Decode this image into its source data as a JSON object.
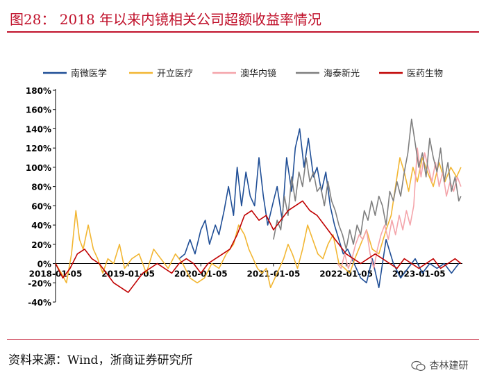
{
  "header": {
    "title": "图28： 2018 年以来内镜相关公司超额收益率情况"
  },
  "footer": {
    "source": "资料来源：Wind，浙商证券研究所",
    "watermark": "杏林建研"
  },
  "colors": {
    "accent": "#c0102a",
    "axis": "#000000"
  },
  "chart_data": {
    "type": "line",
    "title": "2018 年以来内镜相关公司超额收益率情况",
    "xlabel": "",
    "ylabel": "",
    "ylim": [
      -40,
      180
    ],
    "yticks": [
      "180%",
      "160%",
      "140%",
      "120%",
      "100%",
      "80%",
      "60%",
      "40%",
      "20%",
      "0%",
      "-20%",
      "-40%"
    ],
    "ytick_values": [
      180,
      160,
      140,
      120,
      100,
      80,
      60,
      40,
      20,
      0,
      -20,
      -40
    ],
    "xlim": [
      2018.0,
      2023.6
    ],
    "xticks": [
      "2018-01-05",
      "2019-01-05",
      "2020-01-05",
      "2021-01-05",
      "2022-01-05",
      "2023-01-05"
    ],
    "xtick_values": [
      2018.0,
      2019.0,
      2020.0,
      2021.0,
      2022.0,
      2023.0
    ],
    "legend_position": "top",
    "series": [
      {
        "name": "南微医学",
        "color": "#1f4e96",
        "x": [
          2019.7,
          2019.78,
          2019.85,
          2019.92,
          2020.0,
          2020.06,
          2020.12,
          2020.2,
          2020.25,
          2020.32,
          2020.38,
          2020.45,
          2020.5,
          2020.56,
          2020.62,
          2020.68,
          2020.74,
          2020.8,
          2020.86,
          2020.92,
          2021.0,
          2021.05,
          2021.12,
          2021.18,
          2021.25,
          2021.3,
          2021.36,
          2021.42,
          2021.48,
          2021.55,
          2021.6,
          2021.66,
          2021.72,
          2021.78,
          2021.84,
          2021.9,
          2021.96,
          2022.02,
          2022.08,
          2022.14,
          2022.2,
          2022.28,
          2022.36,
          2022.45,
          2022.55,
          2022.65,
          2022.75,
          2022.85,
          2022.95,
          2023.05,
          2023.15,
          2023.25,
          2023.35,
          2023.45,
          2023.55
        ],
        "y": [
          5,
          10,
          25,
          10,
          35,
          45,
          20,
          40,
          30,
          55,
          80,
          50,
          100,
          60,
          95,
          70,
          60,
          110,
          70,
          40,
          65,
          80,
          45,
          110,
          75,
          120,
          140,
          100,
          130,
          90,
          100,
          75,
          95,
          60,
          40,
          25,
          10,
          15,
          5,
          -5,
          -15,
          -20,
          5,
          -25,
          25,
          0,
          -15,
          -5,
          5,
          -10,
          0,
          -5,
          0,
          -10,
          0
        ]
      },
      {
        "name": "开立医疗",
        "color": "#f2b632",
        "x": [
          2018.0,
          2018.08,
          2018.15,
          2018.22,
          2018.28,
          2018.33,
          2018.38,
          2018.45,
          2018.52,
          2018.58,
          2018.65,
          2018.72,
          2018.8,
          2018.88,
          2018.95,
          2019.05,
          2019.15,
          2019.25,
          2019.35,
          2019.45,
          2019.55,
          2019.65,
          2019.75,
          2019.85,
          2019.95,
          2020.05,
          2020.15,
          2020.25,
          2020.35,
          2020.45,
          2020.52,
          2020.6,
          2020.66,
          2020.72,
          2020.78,
          2020.84,
          2020.9,
          2020.96,
          2021.02,
          2021.08,
          2021.14,
          2021.2,
          2021.26,
          2021.33,
          2021.4,
          2021.47,
          2021.54,
          2021.61,
          2021.68,
          2021.75,
          2021.82,
          2021.9,
          2021.98,
          2022.05,
          2022.12,
          2022.2,
          2022.28,
          2022.36,
          2022.45,
          2022.55,
          2022.62,
          2022.68,
          2022.74,
          2022.8,
          2022.86,
          2022.92,
          2022.98,
          2023.05,
          2023.12,
          2023.2,
          2023.28,
          2023.36,
          2023.44,
          2023.52,
          2023.58
        ],
        "y": [
          0,
          -10,
          -20,
          10,
          55,
          25,
          15,
          40,
          15,
          5,
          -10,
          5,
          0,
          20,
          -5,
          5,
          10,
          -10,
          15,
          5,
          -5,
          10,
          0,
          -15,
          -20,
          -15,
          0,
          -5,
          10,
          20,
          40,
          30,
          15,
          5,
          -5,
          -10,
          -5,
          -25,
          -15,
          -5,
          5,
          20,
          10,
          -5,
          15,
          40,
          25,
          10,
          5,
          20,
          30,
          0,
          -5,
          -10,
          5,
          20,
          35,
          15,
          10,
          35,
          50,
          80,
          110,
          95,
          75,
          100,
          85,
          110,
          95,
          80,
          105,
          85,
          100,
          90,
          100
        ]
      },
      {
        "name": "澳华内镜",
        "color": "#f4a4aa",
        "x": [
          2021.88,
          2021.93,
          2021.98,
          2022.03,
          2022.08,
          2022.13,
          2022.18,
          2022.23,
          2022.28,
          2022.33,
          2022.38,
          2022.43,
          2022.48,
          2022.53,
          2022.58,
          2022.63,
          2022.68,
          2022.73,
          2022.78,
          2022.83,
          2022.88,
          2022.93,
          2022.98,
          2023.03,
          2023.08,
          2023.13,
          2023.18,
          2023.23,
          2023.28,
          2023.33,
          2023.38,
          2023.43,
          2023.48,
          2023.53,
          2023.58
        ],
        "y": [
          0,
          -5,
          10,
          -5,
          5,
          20,
          30,
          25,
          35,
          10,
          -5,
          15,
          30,
          40,
          25,
          45,
          30,
          50,
          35,
          55,
          40,
          60,
          120,
          90,
          115,
          100,
          85,
          105,
          80,
          95,
          70,
          85,
          75,
          90,
          80
        ]
      },
      {
        "name": "海泰新光",
        "color": "#7f7f7f",
        "x": [
          2021.0,
          2021.05,
          2021.1,
          2021.15,
          2021.2,
          2021.25,
          2021.3,
          2021.35,
          2021.4,
          2021.45,
          2021.5,
          2021.55,
          2021.6,
          2021.65,
          2021.7,
          2021.75,
          2021.8,
          2021.85,
          2021.9,
          2021.95,
          2022.0,
          2022.05,
          2022.1,
          2022.15,
          2022.2,
          2022.25,
          2022.3,
          2022.35,
          2022.4,
          2022.45,
          2022.5,
          2022.55,
          2022.6,
          2022.65,
          2022.7,
          2022.75,
          2022.8,
          2022.85,
          2022.9,
          2022.95,
          2023.0,
          2023.05,
          2023.1,
          2023.15,
          2023.2,
          2023.25,
          2023.3,
          2023.35,
          2023.4,
          2023.45,
          2023.5,
          2023.55,
          2023.58
        ],
        "y": [
          25,
          45,
          35,
          70,
          50,
          90,
          65,
          95,
          80,
          110,
          85,
          95,
          75,
          80,
          60,
          85,
          65,
          55,
          40,
          30,
          15,
          35,
          20,
          40,
          30,
          55,
          45,
          65,
          50,
          70,
          60,
          40,
          75,
          65,
          85,
          70,
          95,
          115,
          150,
          125,
          100,
          115,
          90,
          130,
          110,
          95,
          120,
          85,
          105,
          75,
          90,
          65,
          70
        ]
      },
      {
        "name": "医药生物",
        "color": "#c00000",
        "x": [
          2018.0,
          2018.1,
          2018.2,
          2018.3,
          2018.4,
          2018.5,
          2018.6,
          2018.7,
          2018.8,
          2018.9,
          2019.0,
          2019.1,
          2019.2,
          2019.3,
          2019.4,
          2019.5,
          2019.6,
          2019.7,
          2019.8,
          2019.9,
          2020.0,
          2020.1,
          2020.2,
          2020.3,
          2020.4,
          2020.5,
          2020.6,
          2020.7,
          2020.8,
          2020.9,
          2021.0,
          2021.1,
          2021.2,
          2021.3,
          2021.4,
          2021.5,
          2021.6,
          2021.7,
          2021.8,
          2021.9,
          2022.0,
          2022.1,
          2022.2,
          2022.3,
          2022.4,
          2022.5,
          2022.6,
          2022.7,
          2022.8,
          2022.9,
          2023.0,
          2023.1,
          2023.2,
          2023.3,
          2023.4,
          2023.5,
          2023.58
        ],
        "y": [
          0,
          -15,
          -5,
          10,
          15,
          5,
          0,
          -10,
          -20,
          -25,
          -30,
          -20,
          -10,
          -5,
          0,
          -5,
          -10,
          0,
          5,
          0,
          -10,
          0,
          5,
          10,
          15,
          30,
          50,
          55,
          45,
          50,
          35,
          45,
          55,
          60,
          65,
          55,
          50,
          40,
          30,
          20,
          10,
          5,
          0,
          5,
          10,
          5,
          0,
          -5,
          5,
          0,
          -5,
          0,
          5,
          -5,
          0,
          5,
          0
        ]
      }
    ]
  }
}
